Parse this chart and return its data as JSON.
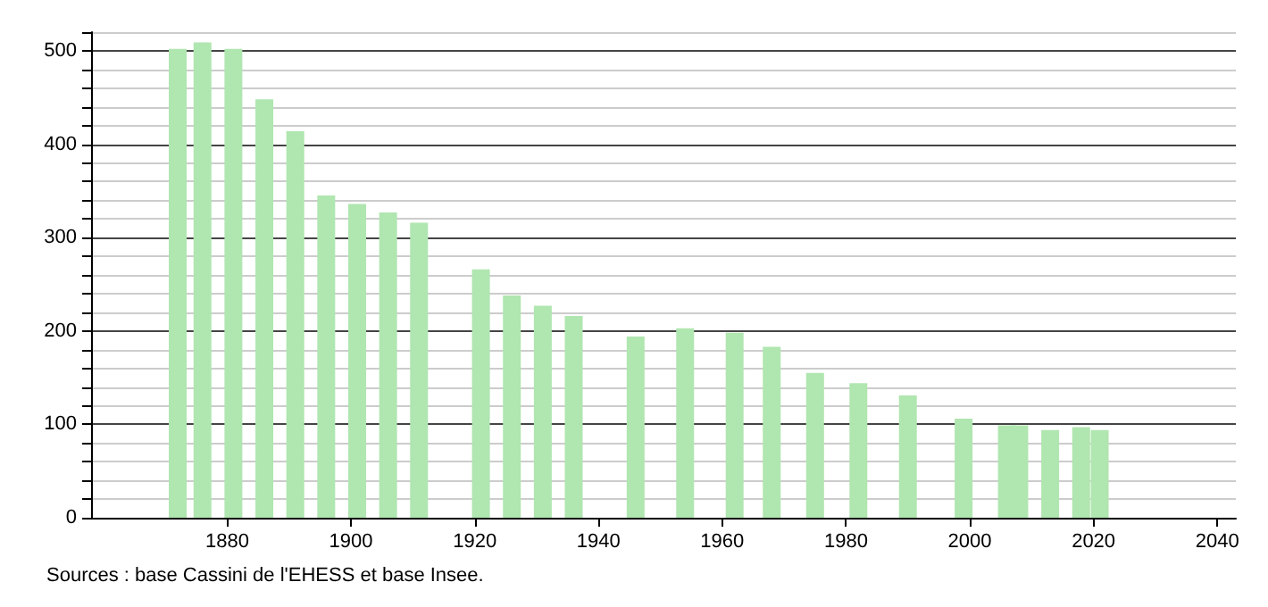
{
  "chart_data": {
    "type": "bar",
    "x": [
      1872,
      1876,
      1881,
      1886,
      1891,
      1896,
      1901,
      1906,
      1911,
      1921,
      1926,
      1931,
      1936,
      1946,
      1954,
      1962,
      1968,
      1975,
      1982,
      1990,
      1999,
      2006,
      2008,
      2013,
      2018,
      2021
    ],
    "values": [
      502,
      509,
      502,
      448,
      414,
      345,
      336,
      327,
      316,
      266,
      238,
      227,
      216,
      194,
      203,
      198,
      183,
      155,
      144,
      131,
      106,
      99,
      99,
      94,
      97,
      94
    ],
    "color": "#b0e6b0",
    "xlim": [
      1858,
      2043
    ],
    "xticks": [
      1880,
      1900,
      1920,
      1940,
      1960,
      1980,
      2000,
      2020,
      2040
    ],
    "ylim": [
      0,
      520
    ],
    "yticks": [
      0,
      {
        "value": 20,
        "label": null
      },
      {
        "value": 40,
        "label": null
      },
      {
        "value": 60,
        "label": null
      },
      {
        "value": 80,
        "label": null
      },
      100,
      {
        "value": 120,
        "label": null
      },
      {
        "value": 140,
        "label": null
      },
      {
        "value": 160,
        "label": null
      },
      {
        "value": 180,
        "label": null
      },
      200,
      {
        "value": 220,
        "label": null
      },
      {
        "value": 240,
        "label": null
      },
      {
        "value": 260,
        "label": null
      },
      {
        "value": 280,
        "label": null
      },
      300,
      {
        "value": 320,
        "label": null
      },
      {
        "value": 340,
        "label": null
      },
      {
        "value": 360,
        "label": null
      },
      {
        "value": 380,
        "label": null
      },
      400,
      {
        "value": 420,
        "label": null
      },
      {
        "value": 440,
        "label": null
      },
      {
        "value": 460,
        "label": null
      },
      {
        "value": 480,
        "label": null
      },
      500,
      {
        "value": 520,
        "label": null
      }
    ],
    "grid": "y",
    "annotations": [
      "Sources : base Cassini de l'EHESS et base Insee."
    ]
  }
}
